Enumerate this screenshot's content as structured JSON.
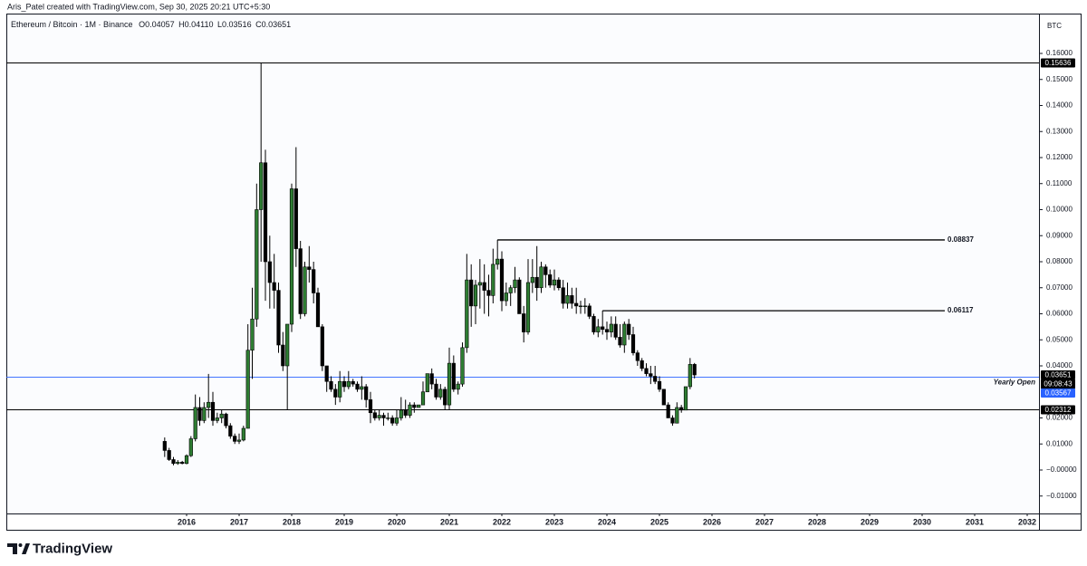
{
  "header": "Aris_Patel created with TradingView.com, Sep 30, 2025 20:21 UTC+5:30",
  "footer": {
    "brand": "TradingView"
  },
  "chart_data": {
    "type": "candlestick",
    "title": "Ethereum / Bitcoin · 1M · Binance",
    "ohlc_labels": [
      "O0.04057",
      "H0.04110",
      "L0.03516",
      "C0.03651"
    ],
    "unit": "BTC",
    "up_color": "#2e7d32",
    "down_color": "#000000",
    "x": [
      2015.583,
      2015.667,
      2015.75,
      2015.833,
      2015.917,
      2016,
      2016.083,
      2016.167,
      2016.25,
      2016.333,
      2016.417,
      2016.5,
      2016.583,
      2016.667,
      2016.75,
      2016.833,
      2016.917,
      2017,
      2017.083,
      2017.167,
      2017.25,
      2017.333,
      2017.417,
      2017.5,
      2017.583,
      2017.667,
      2017.75,
      2017.833,
      2017.917,
      2018,
      2018.083,
      2018.167,
      2018.25,
      2018.333,
      2018.417,
      2018.5,
      2018.583,
      2018.667,
      2018.75,
      2018.833,
      2018.917,
      2019,
      2019.083,
      2019.167,
      2019.25,
      2019.333,
      2019.417,
      2019.5,
      2019.583,
      2019.667,
      2019.75,
      2019.833,
      2019.917,
      2020,
      2020.083,
      2020.167,
      2020.25,
      2020.333,
      2020.417,
      2020.5,
      2020.583,
      2020.667,
      2020.75,
      2020.833,
      2020.917,
      2021,
      2021.083,
      2021.167,
      2021.25,
      2021.333,
      2021.417,
      2021.5,
      2021.583,
      2021.667,
      2021.75,
      2021.833,
      2021.917,
      2022,
      2022.083,
      2022.167,
      2022.25,
      2022.333,
      2022.417,
      2022.5,
      2022.583,
      2022.667,
      2022.75,
      2022.833,
      2022.917,
      2023,
      2023.083,
      2023.167,
      2023.25,
      2023.333,
      2023.417,
      2023.5,
      2023.583,
      2023.667,
      2023.75,
      2023.833,
      2023.917,
      2024,
      2024.083,
      2024.167,
      2024.25,
      2024.333,
      2024.417,
      2024.5,
      2024.583,
      2024.667,
      2024.75,
      2024.833,
      2024.917,
      2025,
      2025.083,
      2025.167,
      2025.25,
      2025.333,
      2025.417,
      2025.5,
      2025.583,
      2025.667
    ],
    "open": [
      0.011,
      0.0075,
      0.004,
      0.0025,
      0.003,
      0.0025,
      0.0055,
      0.012,
      0.024,
      0.019,
      0.024,
      0.026,
      0.019,
      0.02,
      0.0215,
      0.017,
      0.013,
      0.011,
      0.0115,
      0.016,
      0.046,
      0.058,
      0.1,
      0.118,
      0.08,
      0.072,
      0.069,
      0.048,
      0.04,
      0.056,
      0.108,
      0.085,
      0.06,
      0.078,
      0.077,
      0.068,
      0.055,
      0.04,
      0.034,
      0.031,
      0.028,
      0.034,
      0.032,
      0.034,
      0.033,
      0.031,
      0.032,
      0.027,
      0.022,
      0.02,
      0.021,
      0.02,
      0.02,
      0.018,
      0.02,
      0.023,
      0.021,
      0.025,
      0.024,
      0.025,
      0.03,
      0.037,
      0.033,
      0.028,
      0.031,
      0.025,
      0.041,
      0.031,
      0.033,
      0.047,
      0.073,
      0.063,
      0.071,
      0.072,
      0.069,
      0.067,
      0.079,
      0.081,
      0.065,
      0.068,
      0.07,
      0.073,
      0.06,
      0.053,
      0.072,
      0.074,
      0.07,
      0.078,
      0.075,
      0.071,
      0.073,
      0.07,
      0.064,
      0.067,
      0.064,
      0.063,
      0.063,
      0.063,
      0.059,
      0.053,
      0.055,
      0.054,
      0.053,
      0.056,
      0.051,
      0.048,
      0.056,
      0.052,
      0.045,
      0.042,
      0.039,
      0.037,
      0.036,
      0.034,
      0.031,
      0.025,
      0.02,
      0.018,
      0.024,
      0.023,
      0.032,
      0.04057
    ],
    "high": [
      0.0125,
      0.0085,
      0.005,
      0.0038,
      0.0035,
      0.006,
      0.013,
      0.029,
      0.028,
      0.026,
      0.0369,
      0.03,
      0.022,
      0.023,
      0.022,
      0.018,
      0.014,
      0.014,
      0.017,
      0.056,
      0.07,
      0.11,
      0.1564,
      0.123,
      0.09,
      0.083,
      0.072,
      0.053,
      0.056,
      0.11,
      0.124,
      0.088,
      0.08,
      0.086,
      0.08,
      0.07,
      0.056,
      0.04,
      0.036,
      0.033,
      0.038,
      0.036,
      0.038,
      0.035,
      0.034,
      0.036,
      0.033,
      0.03,
      0.023,
      0.023,
      0.022,
      0.022,
      0.021,
      0.023,
      0.028,
      0.027,
      0.026,
      0.026,
      0.025,
      0.034,
      0.037,
      0.039,
      0.035,
      0.033,
      0.032,
      0.047,
      0.044,
      0.034,
      0.049,
      0.083,
      0.079,
      0.073,
      0.081,
      0.079,
      0.075,
      0.085,
      0.0884,
      0.084,
      0.072,
      0.071,
      0.078,
      0.074,
      0.063,
      0.081,
      0.081,
      0.086,
      0.08,
      0.079,
      0.077,
      0.077,
      0.074,
      0.073,
      0.072,
      0.07,
      0.07,
      0.065,
      0.066,
      0.064,
      0.06,
      0.058,
      0.0612,
      0.057,
      0.059,
      0.059,
      0.056,
      0.057,
      0.058,
      0.055,
      0.046,
      0.043,
      0.041,
      0.04,
      0.04,
      0.036,
      0.031,
      0.026,
      0.021,
      0.026,
      0.025,
      0.032,
      0.043,
      0.0411
    ],
    "low": [
      0.005,
      0.0035,
      0.0018,
      0.002,
      0.0022,
      0.0022,
      0.005,
      0.011,
      0.017,
      0.018,
      0.02,
      0.017,
      0.018,
      0.018,
      0.016,
      0.012,
      0.01,
      0.01,
      0.011,
      0.016,
      0.035,
      0.055,
      0.08,
      0.065,
      0.062,
      0.062,
      0.045,
      0.038,
      0.0231,
      0.053,
      0.078,
      0.058,
      0.059,
      0.072,
      0.064,
      0.055,
      0.038,
      0.03,
      0.03,
      0.025,
      0.026,
      0.03,
      0.031,
      0.032,
      0.03,
      0.027,
      0.024,
      0.018,
      0.019,
      0.019,
      0.017,
      0.019,
      0.017,
      0.017,
      0.019,
      0.02,
      0.02,
      0.022,
      0.024,
      0.025,
      0.03,
      0.031,
      0.027,
      0.027,
      0.023,
      0.023,
      0.03,
      0.029,
      0.032,
      0.045,
      0.055,
      0.056,
      0.062,
      0.06,
      0.059,
      0.064,
      0.077,
      0.061,
      0.063,
      0.063,
      0.068,
      0.06,
      0.049,
      0.052,
      0.068,
      0.065,
      0.068,
      0.07,
      0.07,
      0.069,
      0.069,
      0.062,
      0.062,
      0.062,
      0.06,
      0.06,
      0.06,
      0.058,
      0.052,
      0.051,
      0.052,
      0.05,
      0.051,
      0.05,
      0.047,
      0.045,
      0.05,
      0.044,
      0.04,
      0.038,
      0.036,
      0.033,
      0.033,
      0.03,
      0.025,
      0.02,
      0.017,
      0.018,
      0.022,
      0.023,
      0.031,
      0.03516
    ],
    "close": [
      0.0075,
      0.004,
      0.0025,
      0.003,
      0.0025,
      0.0055,
      0.012,
      0.024,
      0.019,
      0.024,
      0.026,
      0.019,
      0.02,
      0.0215,
      0.017,
      0.013,
      0.011,
      0.0115,
      0.016,
      0.046,
      0.058,
      0.1,
      0.118,
      0.08,
      0.072,
      0.069,
      0.048,
      0.04,
      0.056,
      0.108,
      0.085,
      0.06,
      0.078,
      0.077,
      0.068,
      0.055,
      0.04,
      0.034,
      0.031,
      0.028,
      0.034,
      0.032,
      0.034,
      0.033,
      0.031,
      0.032,
      0.027,
      0.022,
      0.02,
      0.021,
      0.02,
      0.02,
      0.018,
      0.02,
      0.023,
      0.021,
      0.025,
      0.024,
      0.025,
      0.03,
      0.037,
      0.033,
      0.028,
      0.031,
      0.025,
      0.041,
      0.031,
      0.033,
      0.047,
      0.073,
      0.063,
      0.071,
      0.072,
      0.069,
      0.067,
      0.079,
      0.081,
      0.065,
      0.068,
      0.07,
      0.073,
      0.06,
      0.053,
      0.072,
      0.074,
      0.07,
      0.078,
      0.075,
      0.071,
      0.073,
      0.07,
      0.064,
      0.067,
      0.064,
      0.063,
      0.063,
      0.063,
      0.059,
      0.053,
      0.055,
      0.054,
      0.053,
      0.056,
      0.051,
      0.048,
      0.056,
      0.052,
      0.045,
      0.042,
      0.039,
      0.037,
      0.036,
      0.034,
      0.031,
      0.025,
      0.02,
      0.018,
      0.024,
      0.023,
      0.032,
      0.04057,
      0.03651
    ],
    "xlim": [
      2012.569,
      2032.224
    ],
    "ylim": [
      -0.0167,
      0.1753
    ],
    "xticks": [
      2016,
      2017,
      2018,
      2019,
      2020,
      2021,
      2022,
      2023,
      2024,
      2025,
      2026,
      2027,
      2028,
      2029,
      2030,
      2031,
      2032
    ],
    "yticks": [
      {
        "value": 0.16,
        "label": "0.16000"
      },
      {
        "value": 0.15,
        "label": "0.15000"
      },
      {
        "value": 0.14,
        "label": "0.14000"
      },
      {
        "value": 0.13,
        "label": "0.13000"
      },
      {
        "value": 0.12,
        "label": "0.12000"
      },
      {
        "value": 0.11,
        "label": "0.11000"
      },
      {
        "value": 0.1,
        "label": "0.10000"
      },
      {
        "value": 0.09,
        "label": "0.09000"
      },
      {
        "value": 0.08,
        "label": "0.08000"
      },
      {
        "value": 0.07,
        "label": "0.07000"
      },
      {
        "value": 0.06,
        "label": "0.06000"
      },
      {
        "value": 0.05,
        "label": "0.05000"
      },
      {
        "value": 0.04,
        "label": "0.04000"
      },
      {
        "value": 0.02,
        "label": "0.02000"
      },
      {
        "value": 0.01,
        "label": "0.01000"
      },
      {
        "value": 0,
        "label": "−0.00000"
      },
      {
        "value": -0.01,
        "label": "−0.01000"
      }
    ],
    "grid": false,
    "hlines": [
      {
        "value": 0.15636,
        "color": "#000000"
      },
      {
        "value": 0.03567,
        "color": "#2962ff",
        "label": "Yearly Open"
      },
      {
        "value": 0.02312,
        "color": "#000000"
      }
    ],
    "levels": [
      {
        "value": 0.08837,
        "from": 2021.917
      },
      {
        "value": 0.06117,
        "from": 2023.917
      }
    ],
    "last_price": 0.03651,
    "last_color": "#000000",
    "countdown": "09:08:43"
  }
}
